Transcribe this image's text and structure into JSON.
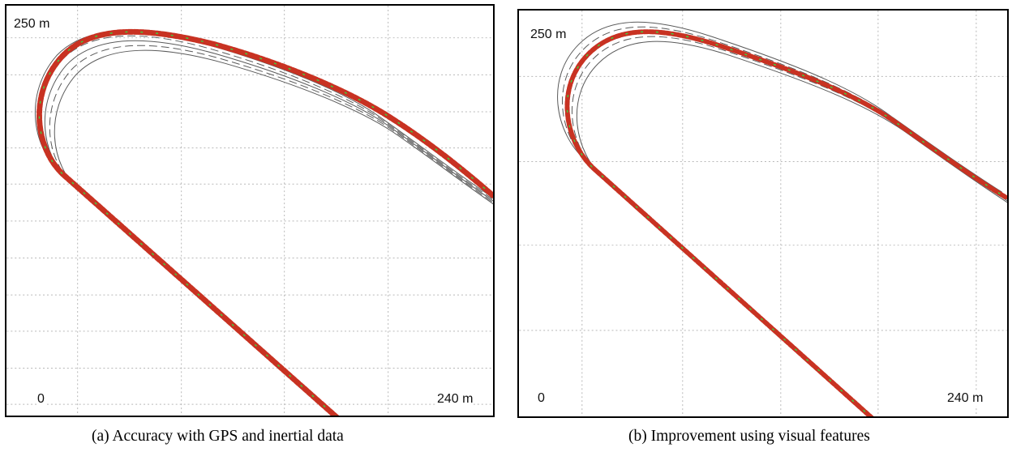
{
  "panels": [
    {
      "caption": "(a) Accuracy with GPS and inertial data",
      "labels": {
        "top_left": "250 m",
        "origin": "0",
        "bottom_right": "240 m"
      }
    },
    {
      "caption": "(b) Improvement using visual features",
      "labels": {
        "top_left": "250 m",
        "origin": "0",
        "bottom_right": "240 m"
      }
    }
  ],
  "colors": {
    "road_edge": "#5a5a5a",
    "grid": "#b0b0b0",
    "trajectory_estimate": "#c83222",
    "trajectory_reference": "#3fcf3f"
  }
}
